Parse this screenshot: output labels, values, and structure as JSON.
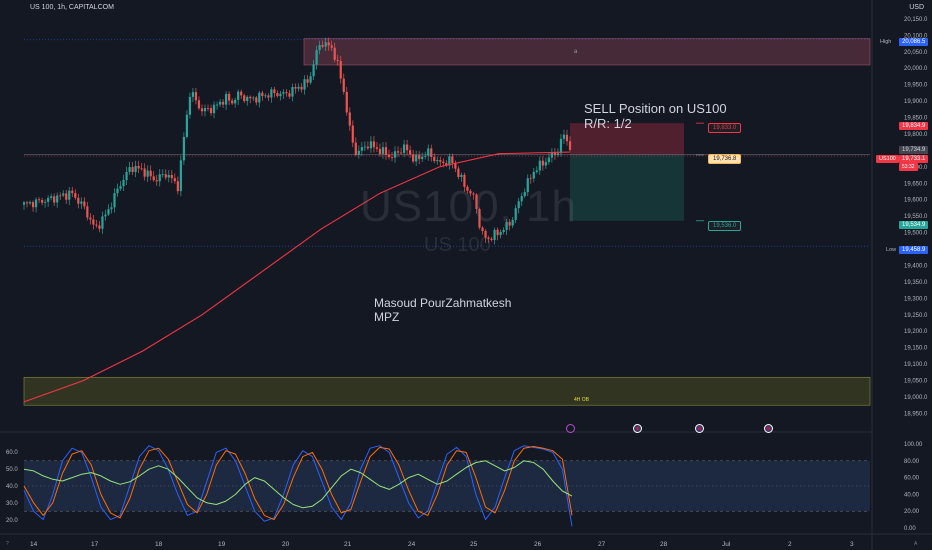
{
  "header": {
    "symbol_title": "US 100, 1h, CAPITALCOM",
    "currency": "USD"
  },
  "watermark": {
    "main": "US100, 1h",
    "sub": "US 100"
  },
  "annotations": {
    "position_line1": "SELL Position on US100",
    "position_line2": "R/R: 1/2",
    "author_line1": "Masoud PourZahmatkesh",
    "author_line2": "MPZ",
    "zone_high_mark": "a",
    "zone_low_label": "4H OB"
  },
  "position_tool": {
    "stop_label": "19,833.0",
    "entry_label": "19,736.8",
    "target_label": "19,536.0"
  },
  "price_tags": {
    "high_label": "High",
    "high_value": "20,086.5",
    "stop_value": "19,834.9",
    "last_label": "US100",
    "last_value": "19,733.1",
    "last_countdown": "53:32",
    "entry_gray": "19,734.9",
    "target_value": "19,534.9",
    "low_label": "Low",
    "low_value": "19,458.9"
  },
  "colors": {
    "background": "#141822",
    "candle_up": "#26a69a",
    "candle_down": "#ef5350",
    "ma_line": "#f23645",
    "stop_zone": "#5c2230",
    "target_zone": "#163b3a",
    "high_zone": "#5d3242",
    "low_zone": "#3c4020",
    "stoch_k": "#2962ff",
    "stoch_d": "#ff6d00",
    "rsi": "#98e47a"
  },
  "icons": {
    "earnings": "earnings-icon",
    "economic": "us-flag-icon"
  },
  "chart_data": [
    {
      "type": "candlestick",
      "title": "US 100, 1h, CAPITALCOM",
      "x_ticks": [
        "14",
        "17",
        "18",
        "19",
        "20",
        "21",
        "24",
        "25",
        "26",
        "27",
        "28",
        "Jul",
        "2",
        "3"
      ],
      "y_ticks": [
        "20,150.0",
        "20,100.0",
        "20,050.0",
        "20,000.0",
        "19,950.0",
        "19,900.0",
        "19,850.0",
        "19,800.0",
        "19,750.0",
        "19,700.0",
        "19,650.0",
        "19,600.0",
        "19,550.0",
        "19,500.0",
        "19,450.0",
        "19,400.0",
        "19,350.0",
        "19,300.0",
        "19,250.0",
        "19,200.0",
        "19,150.0",
        "19,100.0",
        "19,050.0",
        "19,000.0",
        "18,950.0"
      ],
      "ylim": [
        18930,
        20165
      ],
      "key_levels": {
        "high": 20086.5,
        "low": 19458.9,
        "last": 19733.1,
        "stop": 19833.0,
        "entry": 19736.8,
        "target": 19536.0
      },
      "close_path": [
        [
          0,
          19585
        ],
        [
          4,
          19600
        ],
        [
          8,
          19620
        ],
        [
          10,
          19580
        ],
        [
          12,
          19510
        ],
        [
          14,
          19560
        ],
        [
          16,
          19640
        ],
        [
          18,
          19700
        ],
        [
          20,
          19690
        ],
        [
          22,
          19660
        ],
        [
          24,
          19680
        ],
        [
          26,
          19640
        ],
        [
          27,
          19800
        ],
        [
          28,
          19930
        ],
        [
          30,
          19870
        ],
        [
          32,
          19880
        ],
        [
          34,
          19910
        ],
        [
          35,
          19895
        ],
        [
          36,
          19920
        ],
        [
          38,
          19905
        ],
        [
          40,
          19915
        ],
        [
          42,
          19925
        ],
        [
          44,
          19920
        ],
        [
          46,
          19940
        ],
        [
          48,
          19960
        ],
        [
          49,
          20030
        ],
        [
          50,
          20080
        ],
        [
          52,
          20060
        ],
        [
          53,
          20000
        ],
        [
          54,
          19920
        ],
        [
          55,
          19800
        ],
        [
          56,
          19740
        ],
        [
          58,
          19770
        ],
        [
          60,
          19750
        ],
        [
          62,
          19730
        ],
        [
          64,
          19760
        ],
        [
          66,
          19720
        ],
        [
          68,
          19745
        ],
        [
          70,
          19710
        ],
        [
          72,
          19720
        ],
        [
          74,
          19650
        ],
        [
          76,
          19600
        ],
        [
          77,
          19500
        ],
        [
          78,
          19480
        ],
        [
          80,
          19500
        ],
        [
          82,
          19530
        ],
        [
          84,
          19620
        ],
        [
          86,
          19690
        ],
        [
          88,
          19720
        ],
        [
          90,
          19750
        ],
        [
          91,
          19800
        ],
        [
          92,
          19760
        ],
        [
          93,
          19735
        ]
      ],
      "ma_path": [
        [
          0,
          18985
        ],
        [
          10,
          19050
        ],
        [
          20,
          19140
        ],
        [
          30,
          19250
        ],
        [
          40,
          19380
        ],
        [
          50,
          19510
        ],
        [
          60,
          19620
        ],
        [
          70,
          19700
        ],
        [
          80,
          19740
        ],
        [
          92,
          19745
        ]
      ],
      "zones": [
        {
          "name": "supply-zone",
          "top": 20090,
          "bottom": 20010
        },
        {
          "name": "4H OB",
          "top": 19060,
          "bottom": 18975
        }
      ]
    },
    {
      "type": "line",
      "title": "",
      "y_ticks": [
        "100.00",
        "80.00",
        "60.00",
        "40.00",
        "20.00",
        "0.00"
      ],
      "left_ticks": [
        "60.0",
        "50.0",
        "40.0",
        "30.0",
        "20.0"
      ],
      "ylim": [
        0,
        100
      ],
      "band": [
        20,
        80
      ],
      "series": [
        {
          "color": "#2962ff",
          "values": [
            45,
            20,
            10,
            40,
            80,
            95,
            90,
            60,
            25,
            10,
            15,
            50,
            85,
            98,
            92,
            70,
            40,
            15,
            20,
            55,
            90,
            95,
            80,
            50,
            20,
            8,
            12,
            40,
            75,
            92,
            85,
            55,
            25,
            10,
            30,
            70,
            95,
            98,
            90,
            60,
            30,
            12,
            20,
            55,
            88,
            96,
            85,
            40,
            10,
            25,
            60,
            92,
            98,
            96,
            94,
            90,
            70,
            2
          ]
        },
        {
          "color": "#ff6d00",
          "values": [
            50,
            30,
            15,
            30,
            65,
            88,
            92,
            75,
            40,
            18,
            12,
            35,
            70,
            92,
            95,
            82,
            55,
            28,
            18,
            40,
            75,
            92,
            88,
            65,
            35,
            15,
            10,
            28,
            60,
            85,
            90,
            70,
            40,
            18,
            22,
            55,
            85,
            96,
            94,
            75,
            45,
            20,
            15,
            40,
            75,
            92,
            90,
            60,
            25,
            18,
            45,
            80,
            95,
            97,
            95,
            92,
            82,
            15
          ]
        },
        {
          "color": "#98e47a",
          "values": [
            70,
            68,
            62,
            58,
            56,
            60,
            64,
            66,
            62,
            56,
            52,
            55,
            62,
            70,
            74,
            70,
            60,
            48,
            36,
            30,
            28,
            32,
            40,
            52,
            60,
            56,
            46,
            36,
            28,
            24,
            26,
            34,
            48,
            62,
            70,
            66,
            58,
            50,
            46,
            52,
            60,
            64,
            58,
            52,
            56,
            64,
            72,
            78,
            80,
            74,
            68,
            72,
            80,
            78,
            70,
            56,
            44,
            38
          ]
        }
      ]
    }
  ]
}
